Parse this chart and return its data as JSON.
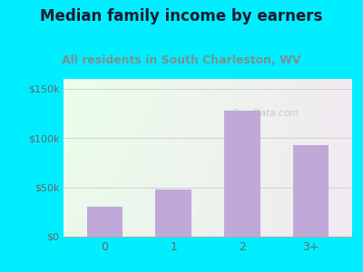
{
  "title": "Median family income by earners",
  "subtitle": "All residents in South Charleston, WV",
  "categories": [
    "0",
    "1",
    "2",
    "3+"
  ],
  "values": [
    30000,
    48000,
    128000,
    93000
  ],
  "bar_color": "#c0a8d8",
  "ylim": [
    0,
    160000
  ],
  "yticks": [
    0,
    50000,
    100000,
    150000
  ],
  "ytick_labels": [
    "$0",
    "$50k",
    "$100k",
    "$150k"
  ],
  "background_outer": "#00eeff",
  "title_color": "#1a1a2e",
  "subtitle_color": "#7a9090",
  "tick_color": "#666666",
  "watermark": "City-Data.com",
  "title_fontsize": 12,
  "subtitle_fontsize": 9
}
